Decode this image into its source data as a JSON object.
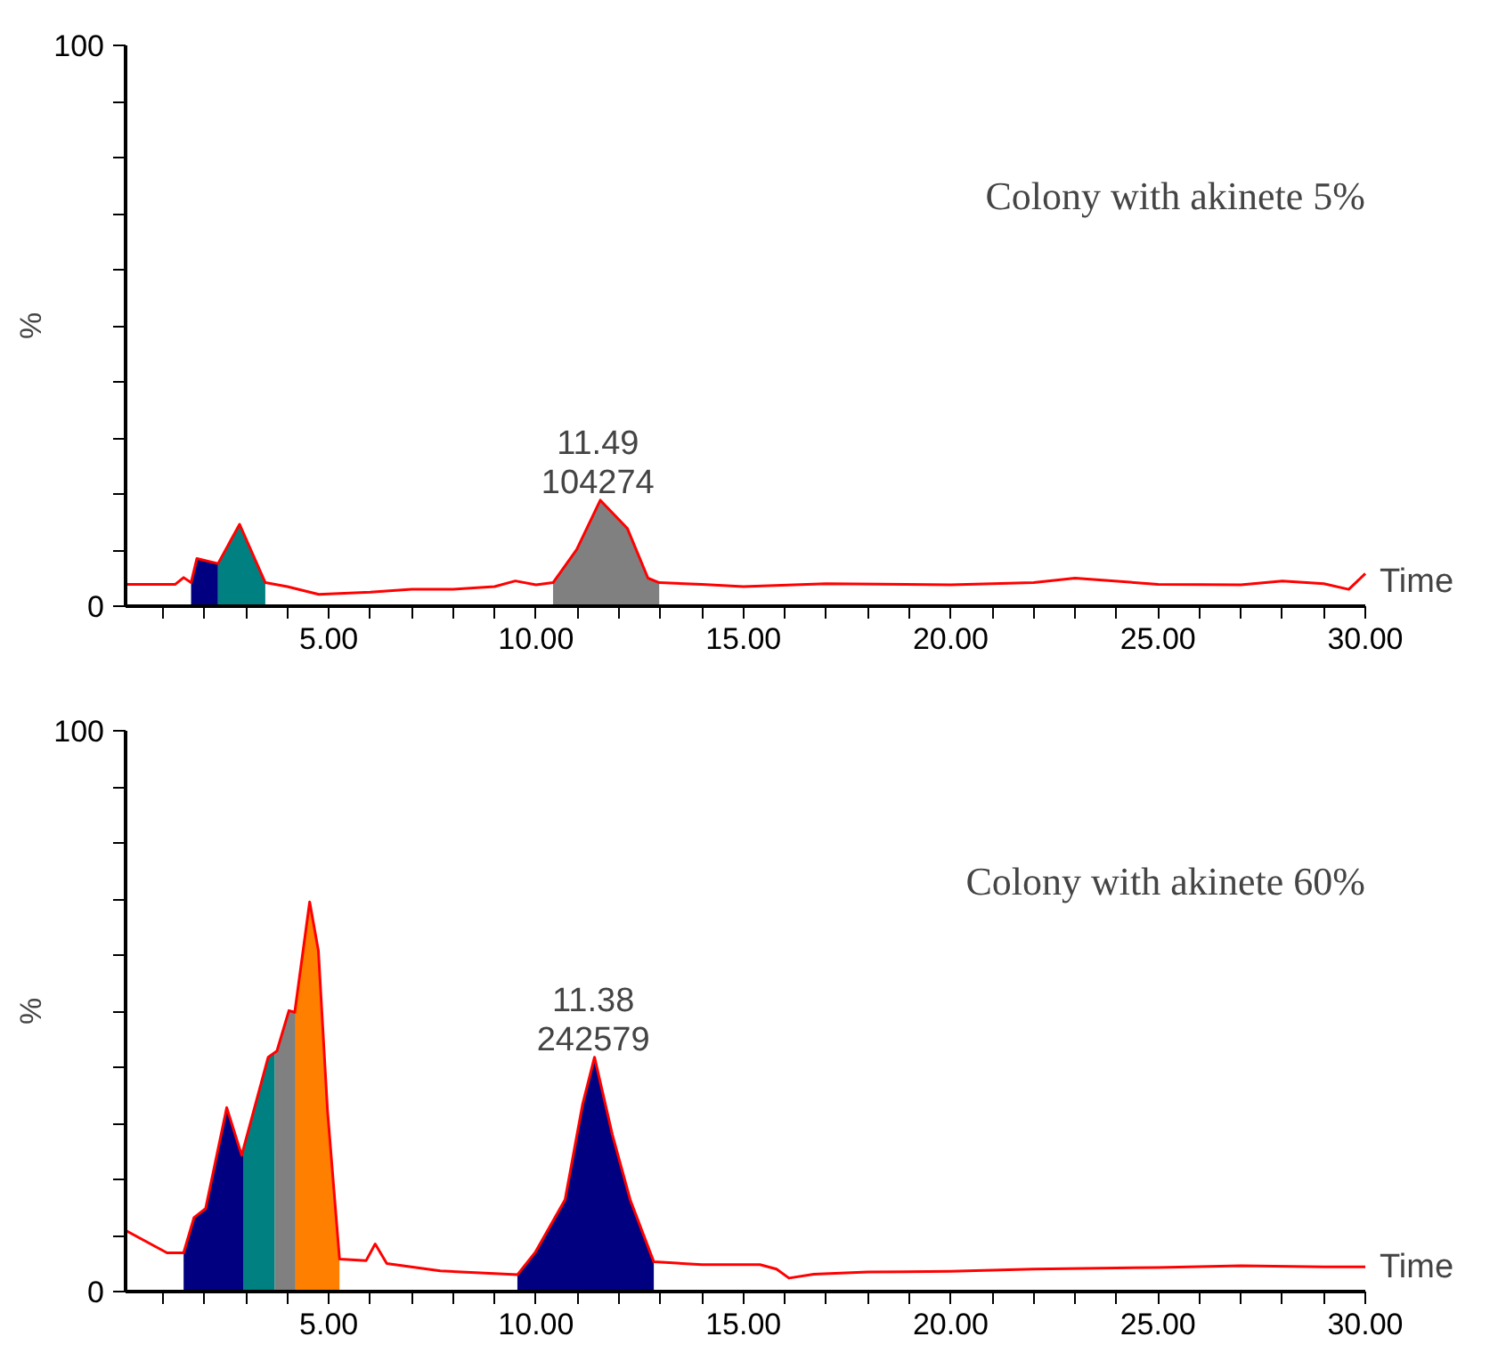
{
  "chart_data": [
    {
      "type": "line",
      "title": "Colony with akinete 5%",
      "xlabel": "Time",
      "ylabel": "%",
      "xlim": [
        0.1,
        30
      ],
      "ylim": [
        0,
        100
      ],
      "xticks": [
        {
          "value": 1,
          "label": null
        },
        {
          "value": 2,
          "label": null
        },
        {
          "value": 3,
          "label": null
        },
        {
          "value": 4,
          "label": null
        },
        {
          "value": 5,
          "label": "5.00"
        },
        {
          "value": 6,
          "label": null
        },
        {
          "value": 7,
          "label": null
        },
        {
          "value": 8,
          "label": null
        },
        {
          "value": 9,
          "label": null
        },
        {
          "value": 10,
          "label": "10.00"
        },
        {
          "value": 11,
          "label": null
        },
        {
          "value": 12,
          "label": null
        },
        {
          "value": 13,
          "label": null
        },
        {
          "value": 14,
          "label": null
        },
        {
          "value": 15,
          "label": "15.00"
        },
        {
          "value": 16,
          "label": null
        },
        {
          "value": 17,
          "label": null
        },
        {
          "value": 18,
          "label": null
        },
        {
          "value": 19,
          "label": null
        },
        {
          "value": 20,
          "label": "20.00"
        },
        {
          "value": 21,
          "label": null
        },
        {
          "value": 22,
          "label": null
        },
        {
          "value": 23,
          "label": null
        },
        {
          "value": 24,
          "label": null
        },
        {
          "value": 25,
          "label": "25.00"
        },
        {
          "value": 26,
          "label": null
        },
        {
          "value": 27,
          "label": null
        },
        {
          "value": 28,
          "label": null
        },
        {
          "value": 29,
          "label": null
        },
        {
          "value": 30,
          "label": "30.00"
        }
      ],
      "yticks": [
        0,
        {
          "value": 10,
          "label": null
        },
        {
          "value": 20,
          "label": null
        },
        {
          "value": 30,
          "label": null
        },
        {
          "value": 40,
          "label": null
        },
        {
          "value": 50,
          "label": null
        },
        {
          "value": 60,
          "label": null
        },
        {
          "value": 70,
          "label": null
        },
        {
          "value": 80,
          "label": null
        },
        {
          "value": 90,
          "label": null
        },
        100
      ],
      "grid": false,
      "series": [
        {
          "type": "line",
          "color": "#ff0000",
          "x": [
            0.1,
            1.3,
            1.5,
            1.68,
            1.82,
            2.33,
            2.85,
            3.47,
            4.0,
            4.76,
            6,
            7,
            8,
            9,
            9.5,
            10,
            10.41,
            10.98,
            11.55,
            12.2,
            12.7,
            12.97,
            14,
            15,
            17,
            20,
            22,
            23,
            25,
            27,
            28,
            29,
            29.6,
            30
          ],
          "values": [
            3.9,
            3.9,
            5.1,
            4.2,
            8.5,
            7.6,
            14.6,
            4.2,
            3.5,
            2.1,
            2.5,
            3,
            3,
            3.5,
            4.5,
            3.8,
            4.2,
            10.1,
            18.9,
            13.9,
            5.0,
            4.2,
            3.9,
            3.5,
            4,
            3.8,
            4.2,
            5.0,
            3.9,
            3.8,
            4.5,
            4,
            3.0,
            5.8
          ]
        },
        {
          "type": "area",
          "color": "#000080",
          "x": [
            1.68,
            1.82,
            2.33
          ],
          "values": [
            4.2,
            8.5,
            7.6
          ]
        },
        {
          "type": "area",
          "color": "#008080",
          "x": [
            2.33,
            2.85,
            3.47
          ],
          "values": [
            7.6,
            14.6,
            4.2
          ]
        },
        {
          "type": "area",
          "color": "#808080",
          "x": [
            10.41,
            10.98,
            11.55,
            12.2,
            12.7,
            12.97
          ],
          "values": [
            4.2,
            10.1,
            18.9,
            13.9,
            5.0,
            4.2
          ]
        }
      ],
      "annotations": [
        {
          "text": "11.49\n104274",
          "x": 11.49,
          "y": 18.9
        }
      ]
    },
    {
      "type": "line",
      "title": "Colony with akinete 60%",
      "xlabel": "Time",
      "ylabel": "%",
      "xlim": [
        0.1,
        30
      ],
      "ylim": [
        0,
        100
      ],
      "xticks": [
        {
          "value": 1,
          "label": null
        },
        {
          "value": 2,
          "label": null
        },
        {
          "value": 3,
          "label": null
        },
        {
          "value": 4,
          "label": null
        },
        {
          "value": 5,
          "label": "5.00"
        },
        {
          "value": 6,
          "label": null
        },
        {
          "value": 7,
          "label": null
        },
        {
          "value": 8,
          "label": null
        },
        {
          "value": 9,
          "label": null
        },
        {
          "value": 10,
          "label": "10.00"
        },
        {
          "value": 11,
          "label": null
        },
        {
          "value": 12,
          "label": null
        },
        {
          "value": 13,
          "label": null
        },
        {
          "value": 14,
          "label": null
        },
        {
          "value": 15,
          "label": "15.00"
        },
        {
          "value": 16,
          "label": null
        },
        {
          "value": 17,
          "label": null
        },
        {
          "value": 18,
          "label": null
        },
        {
          "value": 19,
          "label": null
        },
        {
          "value": 20,
          "label": "20.00"
        },
        {
          "value": 21,
          "label": null
        },
        {
          "value": 22,
          "label": null
        },
        {
          "value": 23,
          "label": null
        },
        {
          "value": 24,
          "label": null
        },
        {
          "value": 25,
          "label": "25.00"
        },
        {
          "value": 26,
          "label": null
        },
        {
          "value": 27,
          "label": null
        },
        {
          "value": 28,
          "label": null
        },
        {
          "value": 29,
          "label": null
        },
        {
          "value": 30,
          "label": "30.00"
        }
      ],
      "yticks": [
        0,
        {
          "value": 10,
          "label": null
        },
        {
          "value": 20,
          "label": null
        },
        {
          "value": 30,
          "label": null
        },
        {
          "value": 40,
          "label": null
        },
        {
          "value": 50,
          "label": null
        },
        {
          "value": 60,
          "label": null
        },
        {
          "value": 70,
          "label": null
        },
        {
          "value": 80,
          "label": null
        },
        {
          "value": 90,
          "label": null
        },
        100
      ],
      "grid": false,
      "series": [
        {
          "type": "line",
          "color": "#ff0000",
          "x": [
            0.1,
            1.1,
            1.5,
            1.75,
            2.03,
            2.54,
            2.9,
            3.54,
            3.75,
            4.04,
            4.18,
            4.54,
            4.75,
            4.97,
            5.26,
            5.9,
            6.12,
            6.4,
            7.69,
            9.55,
            9.98,
            10.7,
            11.12,
            11.41,
            11.84,
            12.27,
            12.84,
            14,
            15.4,
            15.8,
            16.1,
            16.7,
            18,
            20,
            22,
            25,
            27,
            29,
            30
          ],
          "values": [
            10.9,
            6.9,
            6.9,
            13.2,
            14.8,
            32.8,
            24.3,
            41.8,
            42.9,
            50.1,
            49.8,
            69.5,
            60.8,
            32.3,
            5.8,
            5.5,
            8.5,
            5.0,
            3.7,
            3.0,
            7.0,
            16.4,
            33.3,
            41.8,
            28.0,
            16.4,
            5.3,
            4.8,
            4.8,
            4.0,
            2.4,
            3.1,
            3.5,
            3.6,
            4.0,
            4.3,
            4.6,
            4.4,
            4.4
          ]
        },
        {
          "type": "area",
          "color": "#000080",
          "x": [
            1.5,
            1.75,
            2.03,
            2.54,
            2.9,
            2.95
          ],
          "values": [
            6.9,
            13.2,
            14.8,
            32.8,
            24.3,
            26
          ]
        },
        {
          "type": "area",
          "color": "#008080",
          "x": [
            2.95,
            3.54,
            3.7
          ],
          "values": [
            26,
            41.8,
            42.5
          ]
        },
        {
          "type": "area",
          "color": "#808080",
          "x": [
            3.7,
            3.75,
            4.04,
            4.18,
            4.2
          ],
          "values": [
            42.5,
            42.9,
            50.1,
            49.8,
            51
          ]
        },
        {
          "type": "area",
          "color": "#ff8000",
          "x": [
            4.2,
            4.54,
            4.75,
            4.97,
            5.26
          ],
          "values": [
            51,
            69.5,
            60.8,
            32.3,
            5.8
          ]
        },
        {
          "type": "area",
          "color": "#000080",
          "x": [
            9.55,
            9.98,
            10.7,
            11.12,
            11.41,
            11.84,
            12.27,
            12.84
          ],
          "values": [
            3.0,
            7.0,
            16.4,
            33.3,
            41.8,
            28.0,
            16.4,
            5.3
          ]
        }
      ],
      "annotations": [
        {
          "text": "11.38\n242579",
          "x": 11.38,
          "y": 41.8
        }
      ]
    }
  ]
}
